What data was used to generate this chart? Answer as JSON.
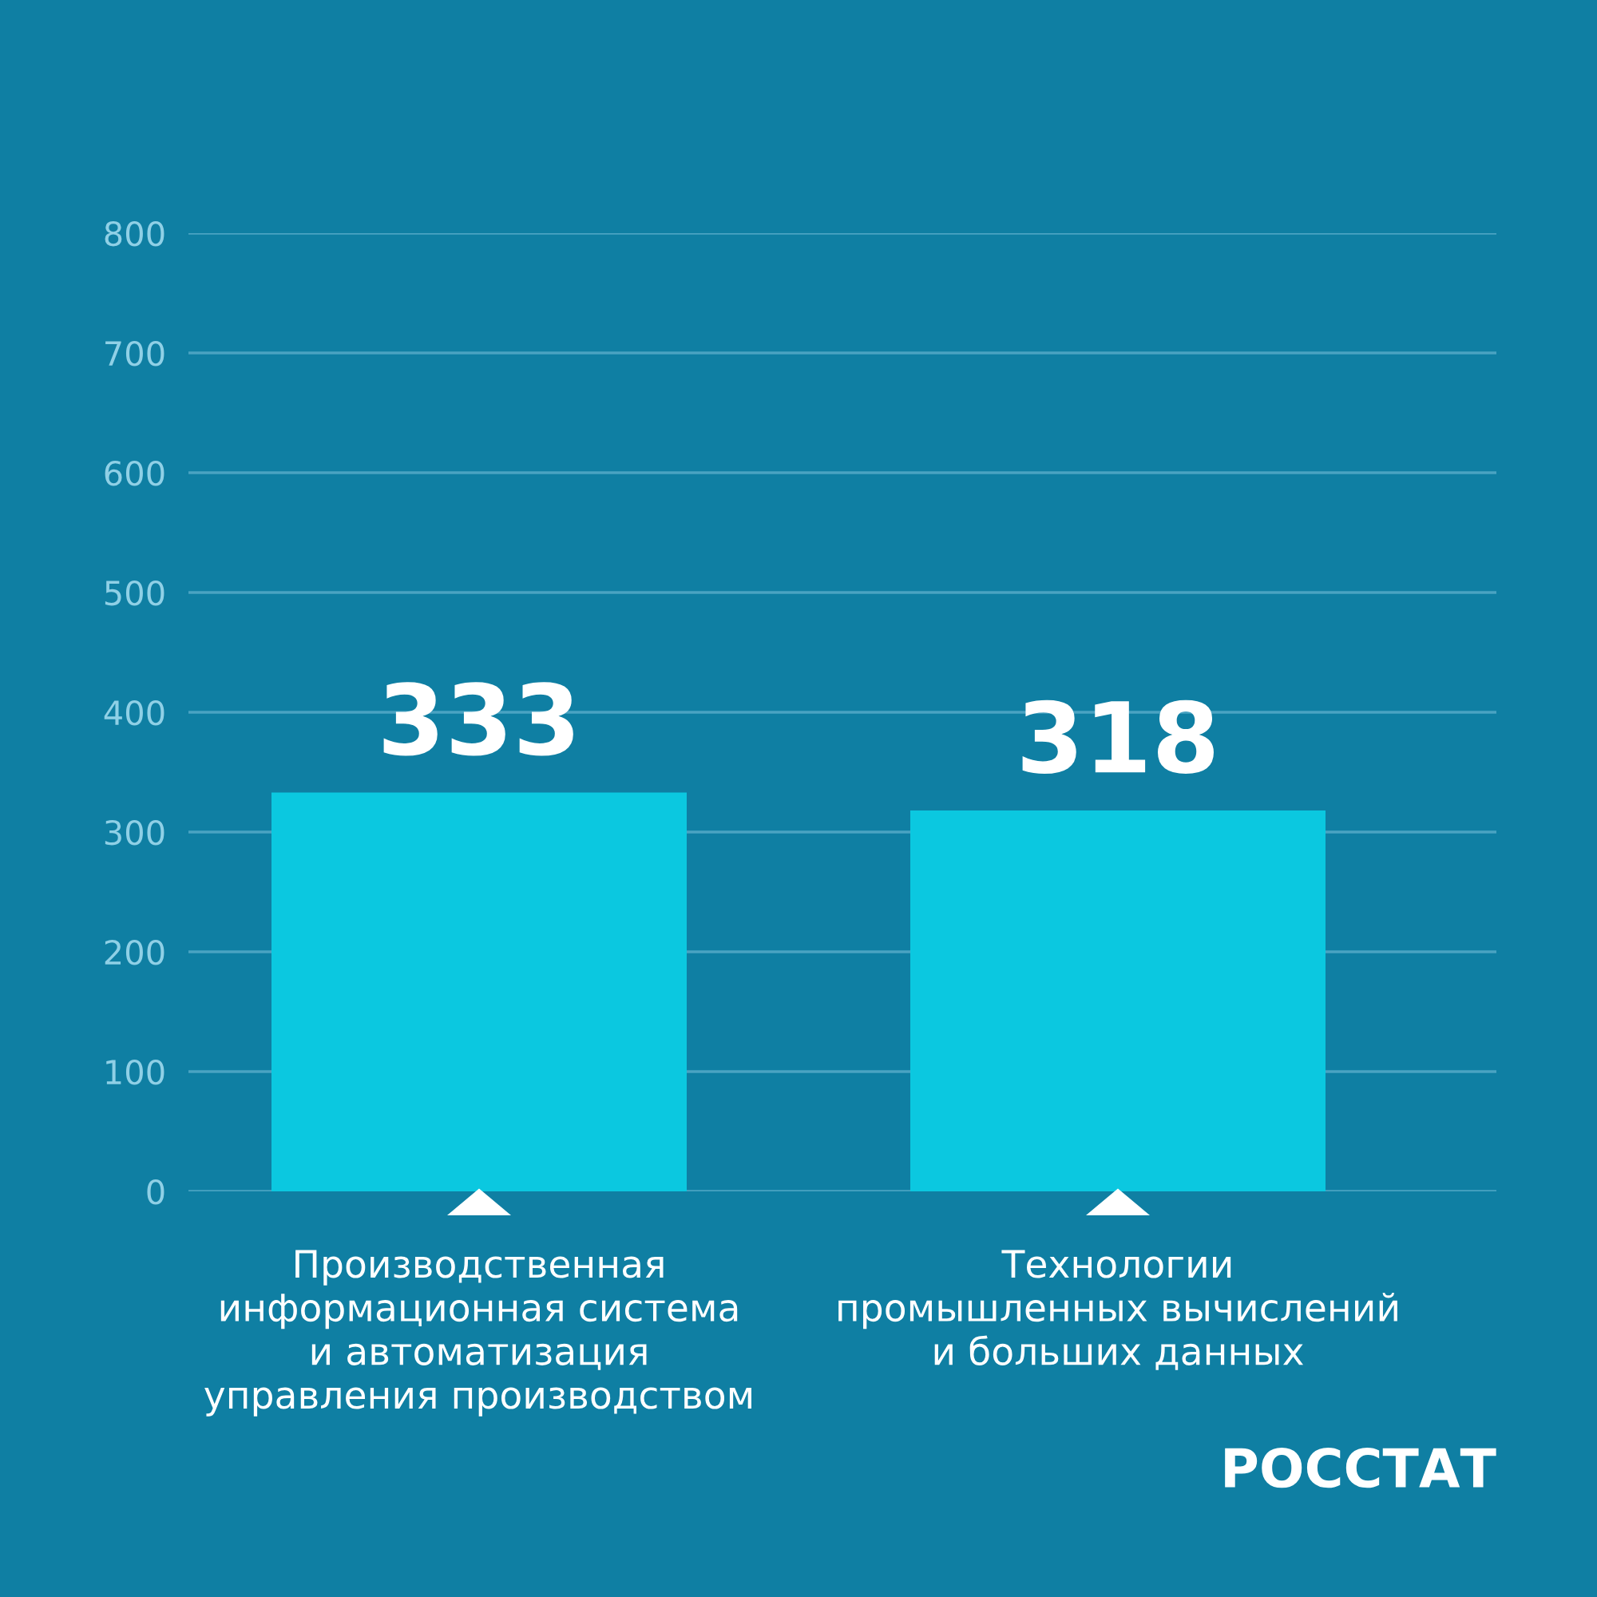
{
  "chart_data": {
    "type": "bar",
    "categories": [
      "Производственная\nинформационная система\nи автоматизация\nуправления производством",
      "Технологии\nпромышленных вычислений\nи больших данных"
    ],
    "values": [
      333,
      318
    ],
    "color": "#0bc8e0",
    "ylim": [
      0,
      800
    ],
    "yticks": [
      0,
      100,
      200,
      300,
      400,
      500,
      600,
      700,
      800
    ],
    "grid": "y",
    "data_labels": true,
    "annotations": [
      "РОССТАТ"
    ]
  }
}
